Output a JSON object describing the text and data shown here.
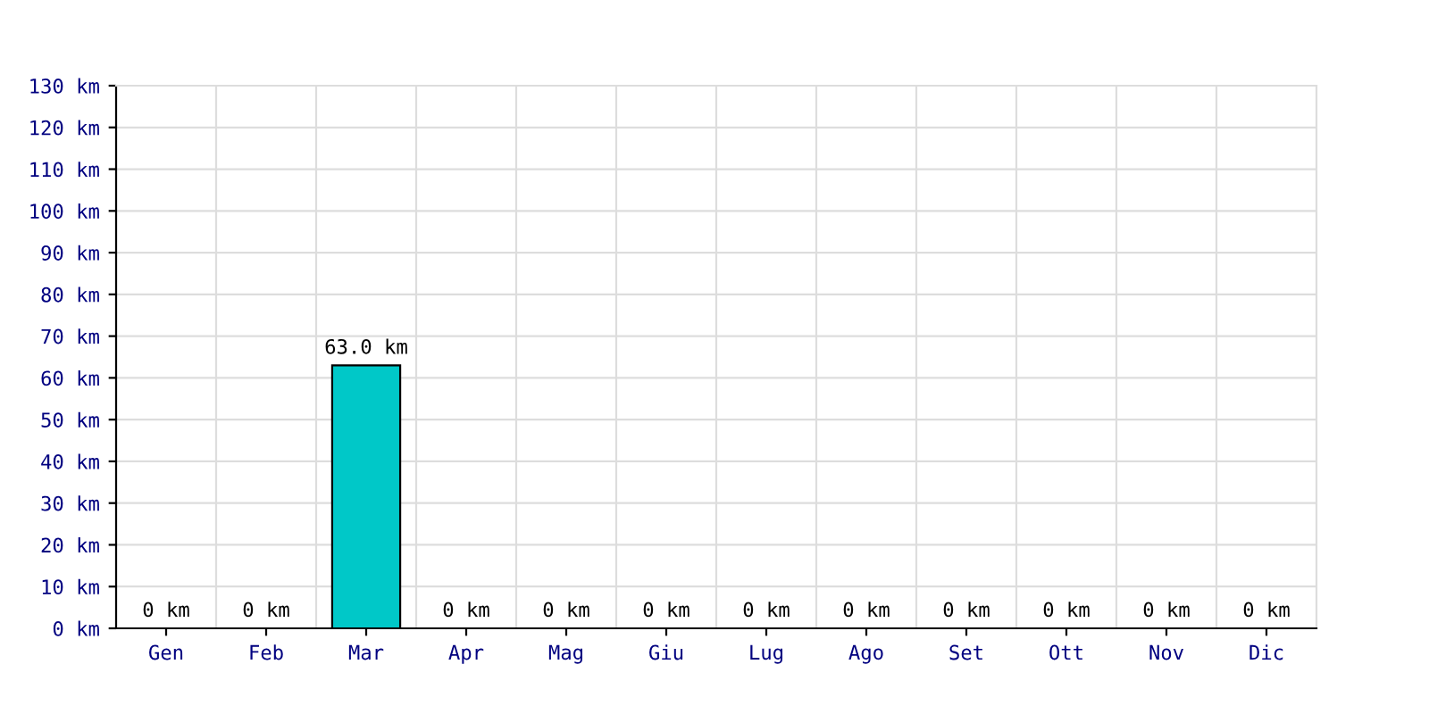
{
  "chart_data": {
    "type": "bar",
    "categories": [
      "Gen",
      "Feb",
      "Mar",
      "Apr",
      "Mag",
      "Giu",
      "Lug",
      "Ago",
      "Set",
      "Ott",
      "Nov",
      "Dic"
    ],
    "values": [
      0,
      0,
      63.0,
      0,
      0,
      0,
      0,
      0,
      0,
      0,
      0,
      0
    ],
    "value_labels": [
      "0 km",
      "0 km",
      "63.0 km",
      "0 km",
      "0 km",
      "0 km",
      "0 km",
      "0 km",
      "0 km",
      "0 km",
      "0 km",
      "0 km"
    ],
    "color": "#00c8c8",
    "ylim": [
      0,
      130
    ],
    "yticks": [
      {
        "value": 0,
        "label": "0 km"
      },
      {
        "value": 10,
        "label": "10 km"
      },
      {
        "value": 20,
        "label": "20 km"
      },
      {
        "value": 30,
        "label": "30 km"
      },
      {
        "value": 40,
        "label": "40 km"
      },
      {
        "value": 50,
        "label": "50 km"
      },
      {
        "value": 60,
        "label": "60 km"
      },
      {
        "value": 70,
        "label": "70 km"
      },
      {
        "value": 80,
        "label": "80 km"
      },
      {
        "value": 90,
        "label": "90 km"
      },
      {
        "value": 100,
        "label": "100 km"
      },
      {
        "value": 110,
        "label": "110 km"
      },
      {
        "value": 120,
        "label": "120 km"
      },
      {
        "value": 130,
        "label": "130 km"
      }
    ],
    "grid": true,
    "legend": false
  }
}
